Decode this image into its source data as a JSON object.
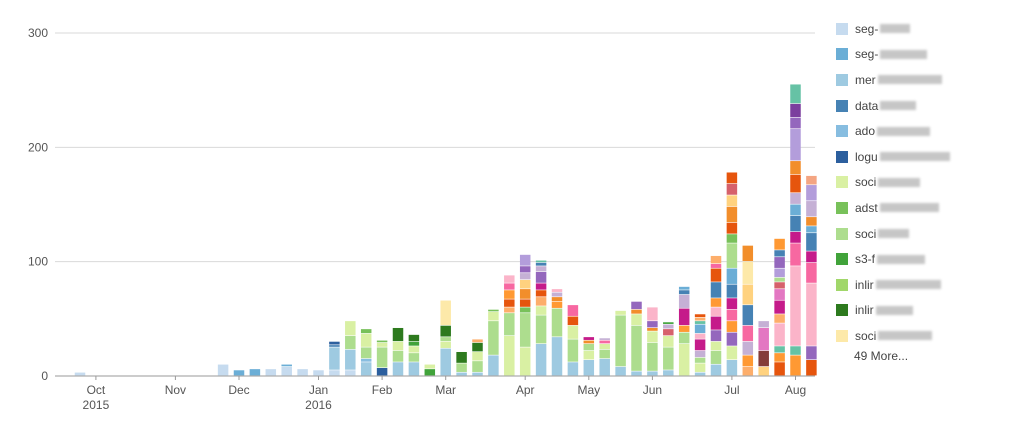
{
  "chart_data": {
    "type": "bar",
    "stacked": true,
    "title": "",
    "xlabel": "",
    "ylabel": "",
    "ylim": [
      0,
      300
    ],
    "y_ticks": [
      0,
      100,
      200,
      300
    ],
    "x_ticks": [
      {
        "label": "Oct",
        "sub": "2015",
        "week": 2
      },
      {
        "label": "Nov",
        "sub": "",
        "week": 7
      },
      {
        "label": "Dec",
        "sub": "",
        "week": 11
      },
      {
        "label": "Jan",
        "sub": "2016",
        "week": 16
      },
      {
        "label": "Feb",
        "sub": "",
        "week": 20
      },
      {
        "label": "Mar",
        "sub": "",
        "week": 24
      },
      {
        "label": "Apr",
        "sub": "",
        "week": 29
      },
      {
        "label": "May",
        "sub": "",
        "week": 33
      },
      {
        "label": "Jun",
        "sub": "",
        "week": 37
      },
      {
        "label": "Jul",
        "sub": "",
        "week": 42
      },
      {
        "label": "Aug",
        "sub": "",
        "week": 46
      }
    ],
    "colors": [
      "#c6dbef",
      "#6baed6",
      "#9ecae1",
      "#4682b4",
      "#87bde0",
      "#2c5f9e",
      "#d9f0a3",
      "#78c15a",
      "#addd8e",
      "#41a33a",
      "#a1d76a",
      "#2d7a1e",
      "#fde9a9",
      "#fdae6b",
      "#e6550d",
      "#f28e2b",
      "#ff9933",
      "#ffd27f",
      "#c51b8a",
      "#f768a1",
      "#fbb4c9",
      "#d6616b",
      "#c5b0d5",
      "#9467bd",
      "#7b3f9e",
      "#b39ddb",
      "#66c2a5",
      "#843c39",
      "#e377c2",
      "#f4a582"
    ],
    "bars": [
      {
        "week": 1,
        "stack": [
          {
            "c": 0,
            "v": 3
          }
        ]
      },
      {
        "week": 10,
        "stack": [
          {
            "c": 0,
            "v": 10
          }
        ]
      },
      {
        "week": 11,
        "stack": [
          {
            "c": 1,
            "v": 5
          }
        ]
      },
      {
        "week": 12,
        "stack": [
          {
            "c": 1,
            "v": 6
          }
        ]
      },
      {
        "week": 13,
        "stack": [
          {
            "c": 0,
            "v": 6
          }
        ]
      },
      {
        "week": 14,
        "stack": [
          {
            "c": 0,
            "v": 8
          },
          {
            "c": 1,
            "v": 2
          }
        ]
      },
      {
        "week": 15,
        "stack": [
          {
            "c": 0,
            "v": 6
          }
        ]
      },
      {
        "week": 16,
        "stack": [
          {
            "c": 0,
            "v": 5
          }
        ]
      },
      {
        "week": 17,
        "stack": [
          {
            "c": 0,
            "v": 5
          },
          {
            "c": 2,
            "v": 20
          },
          {
            "c": 3,
            "v": 2
          },
          {
            "c": 5,
            "v": 3
          }
        ]
      },
      {
        "week": 18,
        "stack": [
          {
            "c": 0,
            "v": 5
          },
          {
            "c": 2,
            "v": 18
          },
          {
            "c": 8,
            "v": 12
          },
          {
            "c": 6,
            "v": 13
          }
        ]
      },
      {
        "week": 19,
        "stack": [
          {
            "c": 2,
            "v": 12
          },
          {
            "c": 4,
            "v": 3
          },
          {
            "c": 8,
            "v": 10
          },
          {
            "c": 6,
            "v": 12
          },
          {
            "c": 7,
            "v": 4
          }
        ]
      },
      {
        "week": 20,
        "stack": [
          {
            "c": 5,
            "v": 7
          },
          {
            "c": 8,
            "v": 18
          },
          {
            "c": 6,
            "v": 4
          },
          {
            "c": 7,
            "v": 2
          }
        ]
      },
      {
        "week": 21,
        "stack": [
          {
            "c": 2,
            "v": 12
          },
          {
            "c": 8,
            "v": 10
          },
          {
            "c": 6,
            "v": 8
          },
          {
            "c": 11,
            "v": 12
          }
        ]
      },
      {
        "week": 22,
        "stack": [
          {
            "c": 2,
            "v": 12
          },
          {
            "c": 8,
            "v": 8
          },
          {
            "c": 6,
            "v": 6
          },
          {
            "c": 9,
            "v": 4
          },
          {
            "c": 11,
            "v": 6
          }
        ]
      },
      {
        "week": 23,
        "stack": [
          {
            "c": 9,
            "v": 6
          },
          {
            "c": 6,
            "v": 4
          }
        ]
      },
      {
        "week": 24,
        "stack": [
          {
            "c": 2,
            "v": 24
          },
          {
            "c": 6,
            "v": 6
          },
          {
            "c": 8,
            "v": 4
          },
          {
            "c": 11,
            "v": 10
          },
          {
            "c": 12,
            "v": 22
          }
        ]
      },
      {
        "week": 25,
        "stack": [
          {
            "c": 2,
            "v": 3
          },
          {
            "c": 8,
            "v": 8
          },
          {
            "c": 11,
            "v": 10
          }
        ]
      },
      {
        "week": 26,
        "stack": [
          {
            "c": 2,
            "v": 3
          },
          {
            "c": 8,
            "v": 10
          },
          {
            "c": 6,
            "v": 8
          },
          {
            "c": 11,
            "v": 8
          },
          {
            "c": 13,
            "v": 3
          }
        ]
      },
      {
        "week": 27,
        "stack": [
          {
            "c": 2,
            "v": 18
          },
          {
            "c": 8,
            "v": 30
          },
          {
            "c": 6,
            "v": 8
          },
          {
            "c": 7,
            "v": 2
          }
        ]
      },
      {
        "week": 28,
        "stack": [
          {
            "c": 6,
            "v": 35
          },
          {
            "c": 8,
            "v": 20
          },
          {
            "c": 13,
            "v": 5
          },
          {
            "c": 14,
            "v": 7
          },
          {
            "c": 16,
            "v": 8
          },
          {
            "c": 19,
            "v": 6
          },
          {
            "c": 20,
            "v": 7
          }
        ]
      },
      {
        "week": 29,
        "stack": [
          {
            "c": 6,
            "v": 25
          },
          {
            "c": 8,
            "v": 30
          },
          {
            "c": 7,
            "v": 5
          },
          {
            "c": 14,
            "v": 7
          },
          {
            "c": 15,
            "v": 9
          },
          {
            "c": 17,
            "v": 8
          },
          {
            "c": 22,
            "v": 6
          },
          {
            "c": 23,
            "v": 6
          },
          {
            "c": 25,
            "v": 10
          }
        ]
      },
      {
        "week": 30,
        "stack": [
          {
            "c": 2,
            "v": 28
          },
          {
            "c": 8,
            "v": 25
          },
          {
            "c": 6,
            "v": 8
          },
          {
            "c": 13,
            "v": 8
          },
          {
            "c": 14,
            "v": 6
          },
          {
            "c": 18,
            "v": 6
          },
          {
            "c": 23,
            "v": 10
          },
          {
            "c": 22,
            "v": 5
          },
          {
            "c": 3,
            "v": 3
          },
          {
            "c": 26,
            "v": 2
          }
        ]
      },
      {
        "week": 31,
        "stack": [
          {
            "c": 2,
            "v": 34
          },
          {
            "c": 8,
            "v": 25
          },
          {
            "c": 16,
            "v": 6
          },
          {
            "c": 15,
            "v": 4
          },
          {
            "c": 22,
            "v": 4
          },
          {
            "c": 20,
            "v": 3
          }
        ]
      },
      {
        "week": 32,
        "stack": [
          {
            "c": 2,
            "v": 12
          },
          {
            "c": 8,
            "v": 20
          },
          {
            "c": 6,
            "v": 12
          },
          {
            "c": 14,
            "v": 8
          },
          {
            "c": 19,
            "v": 10
          }
        ]
      },
      {
        "week": 33,
        "stack": [
          {
            "c": 2,
            "v": 14
          },
          {
            "c": 6,
            "v": 8
          },
          {
            "c": 8,
            "v": 6
          },
          {
            "c": 15,
            "v": 3
          },
          {
            "c": 18,
            "v": 3
          }
        ]
      },
      {
        "week": 34,
        "stack": [
          {
            "c": 2,
            "v": 15
          },
          {
            "c": 8,
            "v": 8
          },
          {
            "c": 6,
            "v": 5
          },
          {
            "c": 19,
            "v": 3
          },
          {
            "c": 22,
            "v": 2
          }
        ]
      },
      {
        "week": 35,
        "stack": [
          {
            "c": 2,
            "v": 8
          },
          {
            "c": 8,
            "v": 45
          },
          {
            "c": 6,
            "v": 4
          }
        ]
      },
      {
        "week": 36,
        "stack": [
          {
            "c": 2,
            "v": 4
          },
          {
            "c": 8,
            "v": 40
          },
          {
            "c": 6,
            "v": 10
          },
          {
            "c": 15,
            "v": 4
          },
          {
            "c": 23,
            "v": 7
          }
        ]
      },
      {
        "week": 37,
        "stack": [
          {
            "c": 2,
            "v": 4
          },
          {
            "c": 8,
            "v": 25
          },
          {
            "c": 6,
            "v": 10
          },
          {
            "c": 15,
            "v": 3
          },
          {
            "c": 23,
            "v": 6
          },
          {
            "c": 20,
            "v": 12
          }
        ]
      },
      {
        "week": 38,
        "stack": [
          {
            "c": 2,
            "v": 5
          },
          {
            "c": 8,
            "v": 20
          },
          {
            "c": 6,
            "v": 10
          },
          {
            "c": 21,
            "v": 6
          },
          {
            "c": 22,
            "v": 4
          },
          {
            "c": 9,
            "v": 2
          }
        ]
      },
      {
        "week": 39,
        "stack": [
          {
            "c": 6,
            "v": 28
          },
          {
            "c": 8,
            "v": 10
          },
          {
            "c": 16,
            "v": 6
          },
          {
            "c": 18,
            "v": 15
          },
          {
            "c": 22,
            "v": 12
          },
          {
            "c": 3,
            "v": 4
          },
          {
            "c": 1,
            "v": 3
          }
        ]
      },
      {
        "week": 40,
        "stack": [
          {
            "c": 2,
            "v": 3
          },
          {
            "c": 6,
            "v": 8
          },
          {
            "c": 8,
            "v": 5
          },
          {
            "c": 22,
            "v": 6
          },
          {
            "c": 18,
            "v": 10
          },
          {
            "c": 20,
            "v": 5
          },
          {
            "c": 1,
            "v": 8
          },
          {
            "c": 26,
            "v": 3
          },
          {
            "c": 13,
            "v": 3
          },
          {
            "c": 14,
            "v": 3
          }
        ]
      },
      {
        "week": 41,
        "stack": [
          {
            "c": 2,
            "v": 10
          },
          {
            "c": 8,
            "v": 12
          },
          {
            "c": 6,
            "v": 8
          },
          {
            "c": 23,
            "v": 10
          },
          {
            "c": 18,
            "v": 12
          },
          {
            "c": 20,
            "v": 8
          },
          {
            "c": 16,
            "v": 8
          },
          {
            "c": 3,
            "v": 14
          },
          {
            "c": 14,
            "v": 12
          },
          {
            "c": 19,
            "v": 4
          },
          {
            "c": 13,
            "v": 7
          }
        ]
      },
      {
        "week": 42,
        "stack": [
          {
            "c": 2,
            "v": 14
          },
          {
            "c": 6,
            "v": 12
          },
          {
            "c": 23,
            "v": 12
          },
          {
            "c": 16,
            "v": 10
          },
          {
            "c": 19,
            "v": 10
          },
          {
            "c": 18,
            "v": 10
          },
          {
            "c": 3,
            "v": 12
          },
          {
            "c": 1,
            "v": 14
          },
          {
            "c": 8,
            "v": 22
          },
          {
            "c": 7,
            "v": 8
          },
          {
            "c": 14,
            "v": 10
          },
          {
            "c": 15,
            "v": 14
          },
          {
            "c": 17,
            "v": 10
          },
          {
            "c": 21,
            "v": 10
          },
          {
            "c": 14,
            "v": 10
          }
        ]
      },
      {
        "week": 43,
        "stack": [
          {
            "c": 13,
            "v": 8
          },
          {
            "c": 16,
            "v": 10
          },
          {
            "c": 22,
            "v": 12
          },
          {
            "c": 19,
            "v": 14
          },
          {
            "c": 3,
            "v": 18
          },
          {
            "c": 17,
            "v": 18
          },
          {
            "c": 12,
            "v": 20
          },
          {
            "c": 15,
            "v": 14
          }
        ]
      },
      {
        "week": 44,
        "stack": [
          {
            "c": 17,
            "v": 8
          },
          {
            "c": 27,
            "v": 14
          },
          {
            "c": 28,
            "v": 20
          },
          {
            "c": 22,
            "v": 6
          }
        ]
      },
      {
        "week": 45,
        "stack": [
          {
            "c": 14,
            "v": 12
          },
          {
            "c": 16,
            "v": 8
          },
          {
            "c": 26,
            "v": 6
          },
          {
            "c": 20,
            "v": 20
          },
          {
            "c": 13,
            "v": 8
          },
          {
            "c": 18,
            "v": 12
          },
          {
            "c": 28,
            "v": 10
          },
          {
            "c": 21,
            "v": 6
          },
          {
            "c": 8,
            "v": 4
          },
          {
            "c": 25,
            "v": 8
          },
          {
            "c": 23,
            "v": 10
          },
          {
            "c": 3,
            "v": 6
          },
          {
            "c": 16,
            "v": 10
          }
        ]
      },
      {
        "week": 46,
        "stack": [
          {
            "c": 16,
            "v": 18
          },
          {
            "c": 26,
            "v": 8
          },
          {
            "c": 20,
            "v": 70
          },
          {
            "c": 19,
            "v": 20
          },
          {
            "c": 18,
            "v": 10
          },
          {
            "c": 3,
            "v": 14
          },
          {
            "c": 1,
            "v": 10
          },
          {
            "c": 22,
            "v": 10
          },
          {
            "c": 14,
            "v": 16
          },
          {
            "c": 15,
            "v": 12
          },
          {
            "c": 25,
            "v": 28
          },
          {
            "c": 23,
            "v": 10
          },
          {
            "c": 24,
            "v": 12
          },
          {
            "c": 26,
            "v": 17
          }
        ]
      },
      {
        "week": 47,
        "stack": [
          {
            "c": 14,
            "v": 14
          },
          {
            "c": 23,
            "v": 12
          },
          {
            "c": 20,
            "v": 55
          },
          {
            "c": 19,
            "v": 18
          },
          {
            "c": 18,
            "v": 10
          },
          {
            "c": 3,
            "v": 16
          },
          {
            "c": 1,
            "v": 6
          },
          {
            "c": 15,
            "v": 8
          },
          {
            "c": 22,
            "v": 14
          },
          {
            "c": 25,
            "v": 14
          },
          {
            "c": 29,
            "v": 8
          }
        ]
      }
    ],
    "legend": [
      {
        "label": "seg-",
        "color": "#c6dbef"
      },
      {
        "label": "seg-",
        "color": "#6baed6"
      },
      {
        "label": "mer",
        "color": "#9ecae1"
      },
      {
        "label": "data",
        "color": "#4682b4"
      },
      {
        "label": "ado",
        "color": "#87bde0"
      },
      {
        "label": "logu",
        "color": "#2c5f9e"
      },
      {
        "label": "soci",
        "color": "#d9f0a3"
      },
      {
        "label": "adst",
        "color": "#78c15a"
      },
      {
        "label": "soci",
        "color": "#addd8e"
      },
      {
        "label": "s3-f",
        "color": "#41a33a"
      },
      {
        "label": "inlir",
        "color": "#a1d76a"
      },
      {
        "label": "inlir",
        "color": "#2d7a1e"
      },
      {
        "label": "soci",
        "color": "#fde9a9"
      }
    ],
    "more_label": "49 More..."
  }
}
